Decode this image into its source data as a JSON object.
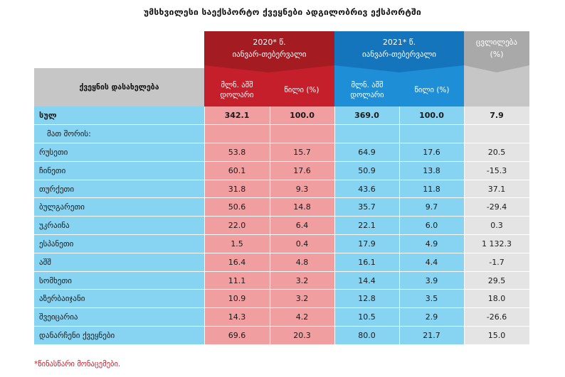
{
  "title": "უმსხვილესი საექსპორტო ქვეყნები ადგილობრივ ექსპორტში",
  "header": {
    "name_col": "ქვეყნის დასახელება",
    "group_2020": {
      "line1": "2020* წ.",
      "line2": "იანვარ-თებერვალი"
    },
    "group_2021": {
      "line1": "2021* წ.",
      "line2": "იანვარ-თებერვალი"
    },
    "change": {
      "line1": "ცვლილება",
      "line2": "(%)"
    },
    "sub_usd_l1": "მლნ. აშშ",
    "sub_usd_l2": "დოლარი",
    "sub_share": "წილი (%)"
  },
  "total": {
    "name": "სულ",
    "v2020": "342.1",
    "s2020": "100.0",
    "v2021": "369.0",
    "s2021": "100.0",
    "change": "7.9"
  },
  "among_label": "მათ შორის:",
  "rows": [
    {
      "name": "რუსეთი",
      "v2020": "53.8",
      "s2020": "15.7",
      "v2021": "64.9",
      "s2021": "17.6",
      "change": "20.5"
    },
    {
      "name": "ჩინეთი",
      "v2020": "60.1",
      "s2020": "17.6",
      "v2021": "50.9",
      "s2021": "13.8",
      "change": "-15.3"
    },
    {
      "name": "თურქეთი",
      "v2020": "31.8",
      "s2020": "9.3",
      "v2021": "43.6",
      "s2021": "11.8",
      "change": "37.1"
    },
    {
      "name": "ბულგარეთი",
      "v2020": "50.6",
      "s2020": "14.8",
      "v2021": "35.7",
      "s2021": "9.7",
      "change": "-29.4"
    },
    {
      "name": "უკრაინა",
      "v2020": "22.0",
      "s2020": "6.4",
      "v2021": "22.1",
      "s2021": "6.0",
      "change": "0.3"
    },
    {
      "name": "ესპანეთი",
      "v2020": "1.5",
      "s2020": "0.4",
      "v2021": "17.9",
      "s2021": "4.9",
      "change": "1 132.3"
    },
    {
      "name": "აშშ",
      "v2020": "16.4",
      "s2020": "4.8",
      "v2021": "16.1",
      "s2021": "4.4",
      "change": "-1.7"
    },
    {
      "name": "სომხეთი",
      "v2020": "11.1",
      "s2020": "3.2",
      "v2021": "14.4",
      "s2021": "3.9",
      "change": "29.5"
    },
    {
      "name": "აზერბაიჯანი",
      "v2020": "10.9",
      "s2020": "3.2",
      "v2021": "12.8",
      "s2021": "3.5",
      "change": "18.0"
    },
    {
      "name": "შვეიცარია",
      "v2020": "14.3",
      "s2020": "4.2",
      "v2021": "10.5",
      "s2021": "2.9",
      "change": "-26.6"
    },
    {
      "name": "დანარჩენი ქვეყნები",
      "v2020": "69.6",
      "s2020": "20.3",
      "v2021": "80.0",
      "s2021": "21.7",
      "change": "15.0"
    }
  ],
  "footnote": "*წინასწარი მონაცემები."
}
